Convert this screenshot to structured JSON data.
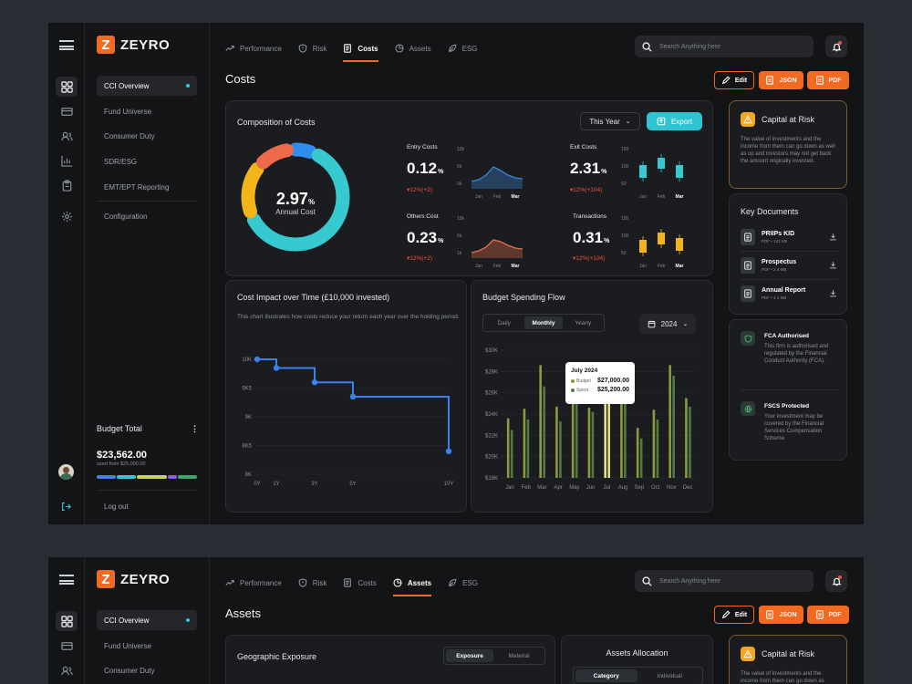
{
  "app": {
    "name": "ZEYRO",
    "logo_letter": "Z",
    "accent": "#f26a21"
  },
  "sidebar": {
    "items": [
      {
        "label": "CCI Overview",
        "active": true
      },
      {
        "label": "Fund Universe"
      },
      {
        "label": "Consumer Duty"
      },
      {
        "label": "SDR/ESG"
      },
      {
        "label": "EMT/EPT Reporting"
      },
      {
        "label": "Configuration"
      }
    ],
    "budget": {
      "title": "Budget Total",
      "amount": "$23,562.00",
      "sub": "used from $25,000.00",
      "segments": [
        "#4a7df0",
        "#36c5d6",
        "#c9d45c",
        "#8a5cf0",
        "#3fa36b"
      ]
    },
    "logout": "Log out"
  },
  "rail_icons": [
    "grid-icon",
    "card-icon",
    "users-icon",
    "chart-icon",
    "clipboard-icon",
    "settings-icon"
  ],
  "tabs": [
    "Performance",
    "Risk",
    "Costs",
    "Assets",
    "ESG"
  ],
  "search": {
    "placeholder": "Search Anything here"
  },
  "actions": {
    "edit": "Edit",
    "json": "JSON",
    "pdf": "PDF"
  },
  "costs_page": {
    "title": "Costs",
    "composition": {
      "title": "Composition of Costs",
      "period": "This Year",
      "export": "Export",
      "donut_value": "2.97",
      "donut_unit": "%",
      "donut_label": "Annual Cost",
      "donut_segments": [
        {
          "color": "#2d8ef0",
          "share": 0.08
        },
        {
          "color": "#36c9cf",
          "share": 0.62
        },
        {
          "color": "#f2b418",
          "share": 0.18
        },
        {
          "color": "#ec6a48",
          "share": 0.12
        }
      ],
      "metrics": [
        {
          "label": "Entry Costs",
          "value": "0.12",
          "unit": "%",
          "change": "12%(+2)",
          "axis": [
            "Jan",
            "Feb",
            "Mar"
          ],
          "yticks": [
            "10k",
            "5k",
            "0k"
          ],
          "kind": "area",
          "color": "#3a86d8"
        },
        {
          "label": "Exit Costs",
          "value": "2.31",
          "unit": "%",
          "change": "12%(+104)",
          "axis": [
            "Jan",
            "Feb",
            "Mar"
          ],
          "yticks": [
            "150",
            "100",
            "50"
          ],
          "kind": "candle",
          "color": "#36c9cf"
        },
        {
          "label": "Others Cost",
          "value": "0.23",
          "unit": "%",
          "change": "12%(+2)",
          "axis": [
            "Jan",
            "Feb",
            "Mar"
          ],
          "yticks": [
            "10k",
            "5k",
            "1k"
          ],
          "kind": "area",
          "color": "#e0704a"
        },
        {
          "label": "Transactions",
          "value": "0.31",
          "unit": "%",
          "change": "12%(+104)",
          "axis": [
            "Jan",
            "Feb",
            "Mar"
          ],
          "yticks": [
            "150",
            "100",
            "50"
          ],
          "kind": "candle",
          "color": "#f2b418"
        }
      ]
    },
    "impact": {
      "title": "Cost Impact over Time (£10,000 invested)",
      "desc": "This chart illustrates how costs reduce your return each year over the holding period."
    },
    "budget_flow": {
      "title": "Budget Spending Flow",
      "periods": [
        "Daily",
        "Monthly",
        "Yearly"
      ],
      "active_period": "Monthly",
      "year": "2024",
      "tooltip": {
        "month": "July 2024",
        "budget_label": "Budget",
        "budget": "$27,000.00",
        "spent_label": "Spent",
        "spent": "$25,200.00"
      }
    },
    "capital_risk": {
      "title": "Capital at Risk",
      "text": "The value of investments and the income from them can go down as well as up and investors may not get back the amount originally invested."
    },
    "documents": {
      "title": "Key Documents",
      "items": [
        {
          "name": "PRIIPs KID",
          "meta": "PDF • 142 KB"
        },
        {
          "name": "Prospectus",
          "meta": "PDF • 2.4 MB"
        },
        {
          "name": "Annual Report",
          "meta": "PDF • 4.1 MB"
        }
      ]
    },
    "regulation": [
      {
        "title": "FCA Authorised",
        "text": "This firm is authorised and regulated by the Financial Conduct Authority (FCA)."
      },
      {
        "title": "FSCS Protected",
        "text": "Your investment may be covered by the Financial Services Compensation Scheme."
      }
    ]
  },
  "assets_page": {
    "title": "Assets",
    "geo": {
      "title": "Geographic Exposure",
      "toggle": [
        "Exposure",
        "Material"
      ],
      "active": "Exposure"
    },
    "allocation": {
      "title": "Assets Allocation",
      "toggle": [
        "Category",
        "Individual"
      ],
      "active": "Category"
    },
    "capital_risk": {
      "title": "Capital at Risk",
      "text": "The value of investments and the income from them can go down as"
    }
  },
  "chart_data": [
    {
      "type": "line",
      "title": "Cost Impact over Time (£10,000 invested)",
      "x": [
        "0Y",
        "1Y",
        "3Y",
        "5Y",
        "10Y"
      ],
      "x_values": [
        0,
        1,
        3,
        5,
        10
      ],
      "series": [
        {
          "values": [
            10000,
            9850,
            9600,
            9350,
            8400
          ]
        }
      ],
      "yticks": [
        "10K",
        "9K5",
        "9K",
        "8K5",
        "8K"
      ],
      "ylim": [
        8000,
        10000
      ],
      "grid": true,
      "step": true,
      "color": "#3b7ff2"
    },
    {
      "type": "bar",
      "title": "Budget Spending Flow",
      "categories": [
        "Jan",
        "Feb",
        "Mar",
        "Apr",
        "May",
        "Jun",
        "Jul",
        "Aug",
        "Sep",
        "Oct",
        "Nov",
        "Dec"
      ],
      "series": [
        {
          "name": "Budget",
          "values": [
            23600,
            24500,
            28600,
            24700,
            27500,
            24600,
            27000,
            27700,
            22700,
            24400,
            28600,
            25500
          ]
        },
        {
          "name": "Spent",
          "values": [
            22500,
            23500,
            26600,
            23300,
            25200,
            24200,
            25200,
            25800,
            21700,
            23500,
            27600,
            24700
          ]
        }
      ],
      "yticks": [
        "$30K",
        "$28K",
        "$26K",
        "$24K",
        "$22K",
        "$20K",
        "$18K"
      ],
      "ylim": [
        18000,
        30000
      ],
      "highlight": "Jul",
      "colors": {
        "Budget": "#8a9a3c",
        "Spent": "#4f7a45",
        "highlight": "#e6e28a"
      }
    }
  ]
}
